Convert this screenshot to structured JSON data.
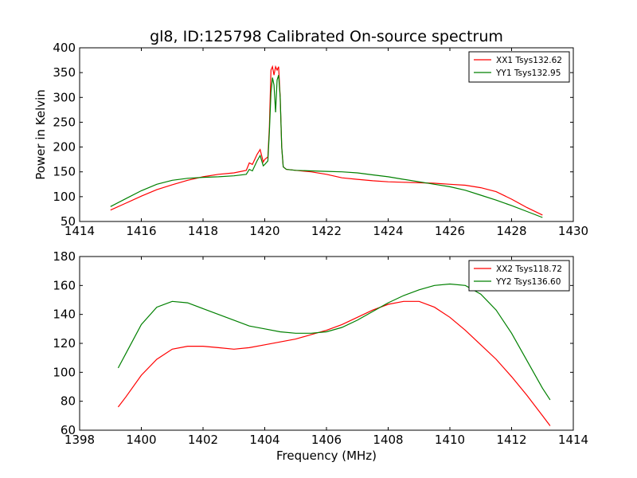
{
  "chart_data": [
    {
      "type": "line",
      "title": "gl8, ID:125798 Calibrated On-source spectrum",
      "xlabel": "",
      "ylabel": "Power in Kelvin",
      "xlim": [
        1414,
        1430
      ],
      "ylim": [
        50,
        400
      ],
      "xticks": [
        "1414",
        "1416",
        "1418",
        "1420",
        "1422",
        "1424",
        "1426",
        "1428",
        "1430"
      ],
      "yticks": [
        "50",
        "100",
        "150",
        "200",
        "250",
        "300",
        "350",
        "400"
      ],
      "legend_position": "top-right",
      "series": [
        {
          "name": "XX1 Tsys132.62",
          "color": "#ff0000",
          "x": [
            1415.0,
            1415.5,
            1416.0,
            1416.5,
            1417.0,
            1417.5,
            1418.0,
            1418.5,
            1419.0,
            1419.4,
            1419.5,
            1419.6,
            1419.75,
            1419.85,
            1419.95,
            1420.0,
            1420.1,
            1420.15,
            1420.2,
            1420.25,
            1420.3,
            1420.35,
            1420.4,
            1420.45,
            1420.5,
            1420.55,
            1420.6,
            1420.7,
            1421.0,
            1421.5,
            1422.0,
            1422.5,
            1423.0,
            1423.5,
            1424.0,
            1424.5,
            1425.0,
            1425.5,
            1426.0,
            1426.5,
            1427.0,
            1427.5,
            1428.0,
            1428.5,
            1429.0
          ],
          "y": [
            73,
            87,
            101,
            114,
            124,
            133,
            140,
            145,
            148,
            153,
            168,
            165,
            185,
            195,
            170,
            175,
            180,
            240,
            355,
            362,
            345,
            362,
            355,
            362,
            300,
            200,
            160,
            155,
            153,
            150,
            145,
            138,
            135,
            132,
            130,
            129,
            128,
            127,
            125,
            123,
            118,
            110,
            95,
            78,
            63
          ]
        },
        {
          "name": "YY1 Tsys132.95",
          "color": "#008000",
          "x": [
            1415.0,
            1415.5,
            1416.0,
            1416.5,
            1417.0,
            1417.5,
            1418.0,
            1418.5,
            1419.0,
            1419.4,
            1419.5,
            1419.6,
            1419.75,
            1419.85,
            1419.95,
            1420.0,
            1420.1,
            1420.15,
            1420.2,
            1420.25,
            1420.3,
            1420.35,
            1420.4,
            1420.45,
            1420.5,
            1420.55,
            1420.6,
            1420.7,
            1421.0,
            1421.5,
            1422.0,
            1422.5,
            1423.0,
            1423.5,
            1424.0,
            1424.5,
            1425.0,
            1425.5,
            1426.0,
            1426.5,
            1427.0,
            1427.5,
            1428.0,
            1428.5,
            1429.0
          ],
          "y": [
            80,
            96,
            112,
            125,
            133,
            137,
            139,
            140,
            142,
            145,
            155,
            152,
            172,
            183,
            162,
            165,
            172,
            230,
            310,
            340,
            325,
            270,
            335,
            345,
            300,
            200,
            160,
            155,
            153,
            152,
            151,
            150,
            148,
            144,
            140,
            135,
            130,
            125,
            120,
            113,
            103,
            93,
            82,
            70,
            58
          ]
        }
      ]
    },
    {
      "type": "line",
      "title": "",
      "xlabel": "Frequency (MHz)",
      "ylabel": "",
      "xlim": [
        1398,
        1414
      ],
      "ylim": [
        60,
        180
      ],
      "xticks": [
        "1398",
        "1400",
        "1402",
        "1404",
        "1406",
        "1408",
        "1410",
        "1412",
        "1414"
      ],
      "yticks": [
        "60",
        "80",
        "100",
        "120",
        "140",
        "160",
        "180"
      ],
      "legend_position": "top-right",
      "series": [
        {
          "name": "XX2 Tsys118.72",
          "color": "#ff0000",
          "x": [
            1399.25,
            1399.5,
            1400.0,
            1400.5,
            1401.0,
            1401.5,
            1402.0,
            1402.5,
            1403.0,
            1403.5,
            1404.0,
            1404.5,
            1405.0,
            1405.5,
            1406.0,
            1406.5,
            1407.0,
            1407.5,
            1408.0,
            1408.5,
            1409.0,
            1409.5,
            1410.0,
            1410.5,
            1411.0,
            1411.5,
            1412.0,
            1412.5,
            1413.0,
            1413.25
          ],
          "y": [
            76,
            83,
            98,
            109,
            116,
            118,
            118,
            117,
            116,
            117,
            119,
            121,
            123,
            126,
            129,
            133,
            138,
            143,
            147,
            149,
            149,
            145,
            138,
            129,
            119,
            109,
            97,
            84,
            70,
            63
          ]
        },
        {
          "name": "YY2 Tsys136.60",
          "color": "#008000",
          "x": [
            1399.25,
            1399.5,
            1400.0,
            1400.5,
            1401.0,
            1401.5,
            1402.0,
            1402.5,
            1403.0,
            1403.5,
            1404.0,
            1404.5,
            1405.0,
            1405.5,
            1406.0,
            1406.5,
            1407.0,
            1407.5,
            1408.0,
            1408.5,
            1409.0,
            1409.5,
            1410.0,
            1410.5,
            1411.0,
            1411.5,
            1412.0,
            1412.5,
            1413.0,
            1413.25
          ],
          "y": [
            103,
            113,
            133,
            145,
            149,
            148,
            144,
            140,
            136,
            132,
            130,
            128,
            127,
            127,
            128,
            131,
            136,
            142,
            148,
            153,
            157,
            160,
            161,
            160,
            154,
            143,
            127,
            108,
            89,
            81
          ]
        }
      ]
    }
  ]
}
